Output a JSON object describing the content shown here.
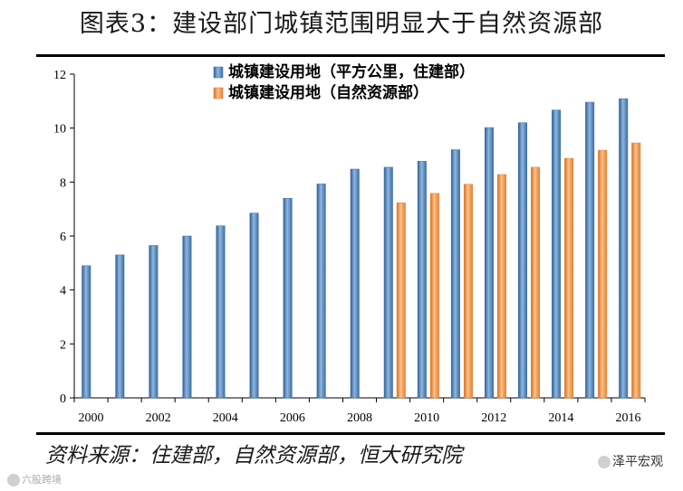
{
  "title": "图表3：建设部门城镇范围明显大于自然资源部",
  "source": "资料来源：住建部，自然资源部，恒大研究院",
  "watermark_right": "泽平宏观",
  "watermark_left": "六股跨境",
  "chart_data": {
    "type": "bar",
    "title": "图表3：建设部门城镇范围明显大于自然资源部",
    "xlabel": "",
    "ylabel": "",
    "ylim": [
      0,
      12
    ],
    "yticks": [
      "0",
      "2",
      "4",
      "6",
      "8",
      "10",
      "12"
    ],
    "categories": [
      "2000",
      "2001",
      "2002",
      "2003",
      "2004",
      "2005",
      "2006",
      "2007",
      "2008",
      "2009",
      "2010",
      "2011",
      "2012",
      "2013",
      "2014",
      "2015",
      "2016"
    ],
    "xtick_labels": [
      "2000",
      "2002",
      "2004",
      "2006",
      "2008",
      "2010",
      "2012",
      "2014",
      "2016"
    ],
    "legend_position": "top-center",
    "series": [
      {
        "name": "城镇建设用地（平方公里，住建部）",
        "color": "#4f81bd",
        "values": [
          4.9,
          5.3,
          5.65,
          6.0,
          6.38,
          6.85,
          7.4,
          7.93,
          8.48,
          8.55,
          8.77,
          9.2,
          10.02,
          10.2,
          10.67,
          10.96,
          11.09
        ]
      },
      {
        "name": "城镇建设用地（自然资源部）",
        "color": "#f79646",
        "values": [
          null,
          null,
          null,
          null,
          null,
          null,
          null,
          null,
          null,
          7.23,
          7.58,
          7.92,
          8.28,
          8.55,
          8.88,
          9.18,
          9.45
        ]
      }
    ]
  }
}
